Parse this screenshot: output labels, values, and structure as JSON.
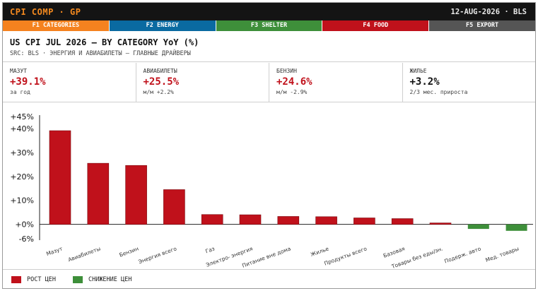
{
  "header": {
    "title": "CPI COMP · GP",
    "meta": "12-AUG-2026 · BLS"
  },
  "tabs": [
    {
      "label": "F1 CATEGORIES",
      "color": "#f5821f"
    },
    {
      "label": "F2 ENERGY",
      "color": "#0a6aa1"
    },
    {
      "label": "F3 SHELTER",
      "color": "#3e8f3a"
    },
    {
      "label": "F4 FOOD",
      "color": "#c0111b"
    },
    {
      "label": "F5 EXPORT",
      "color": "#555555"
    }
  ],
  "panel": {
    "title": "US CPI JUL 2026 — BY CATEGORY YoY (%)",
    "subtitle": "SRC: BLS · ЭНЕРГИЯ И АВИАБИЛЕТЫ — ГЛАВНЫЕ ДРАЙВЕРЫ"
  },
  "kpis": [
    {
      "label": "МАЗУТ",
      "value": "+39.1%",
      "sub": "за год",
      "tone": "up"
    },
    {
      "label": "АВИАБИЛЕТЫ",
      "value": "+25.5%",
      "sub": "м/м +2.2%",
      "tone": "up"
    },
    {
      "label": "БЕНЗИН",
      "value": "+24.6%",
      "sub": "м/м -2.9%",
      "tone": "up"
    },
    {
      "label": "ЖИЛЬЕ",
      "value": "+3.2%",
      "sub": "2/3 мес. прироста",
      "tone": "flat"
    }
  ],
  "legend": {
    "up_label": "РОСТ ЦЕН",
    "down_label": "СНИЖЕНИЕ ЦЕН",
    "up_color": "#c0111b",
    "down_color": "#3e8f3a"
  },
  "chart_data": {
    "type": "bar",
    "categories": [
      "Мазут",
      "Авиабилеты",
      "Бензин",
      "Энергия всего",
      "Газ",
      "Электро- энергия",
      "Питание вне дома",
      "Жилье",
      "Продукты всего",
      "Базовая",
      "Товары без еды/эн.",
      "Подерж. авто",
      "Мед. товары"
    ],
    "values": [
      39.1,
      25.5,
      24.6,
      14.5,
      4.1,
      4.0,
      3.3,
      3.2,
      2.7,
      2.4,
      0.6,
      -1.9,
      -2.7
    ],
    "yticks": [
      "+45%",
      "+40%",
      "+30%",
      "+20%",
      "+10%",
      "+0%",
      "-6%"
    ],
    "ytick_values": [
      45,
      40,
      30,
      20,
      10,
      0,
      -6
    ],
    "ylim": [
      -6,
      45
    ],
    "colors": {
      "up": "#c0111b",
      "down": "#3e8f3a"
    }
  }
}
